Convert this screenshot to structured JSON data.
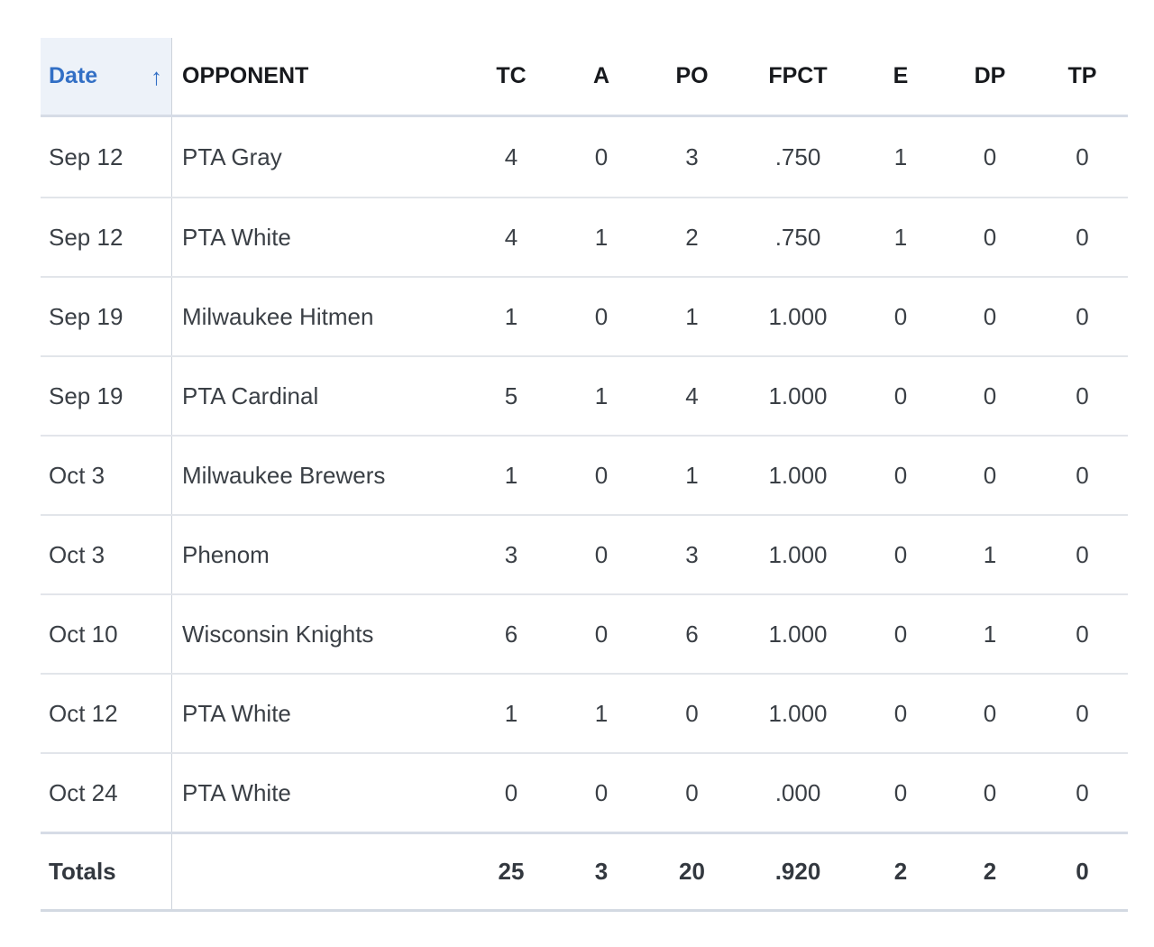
{
  "colors": {
    "sorted_column_text": "#326fc5",
    "sorted_column_bg": "#edf2f9",
    "header_text": "#17191d",
    "body_text": "#3a3f45"
  },
  "table": {
    "sort": {
      "column": "Date",
      "direction": "ascending",
      "arrow_glyph": "↑"
    },
    "columns": [
      {
        "key": "date",
        "label": "Date"
      },
      {
        "key": "opponent",
        "label": "OPPONENT"
      },
      {
        "key": "tc",
        "label": "TC"
      },
      {
        "key": "a",
        "label": "A"
      },
      {
        "key": "po",
        "label": "PO"
      },
      {
        "key": "fpct",
        "label": "FPCT"
      },
      {
        "key": "e",
        "label": "E"
      },
      {
        "key": "dp",
        "label": "DP"
      },
      {
        "key": "tp",
        "label": "TP"
      }
    ],
    "rows": [
      {
        "date": "Sep 12",
        "opponent": "PTA Gray",
        "tc": "4",
        "a": "0",
        "po": "3",
        "fpct": ".750",
        "e": "1",
        "dp": "0",
        "tp": "0"
      },
      {
        "date": "Sep 12",
        "opponent": "PTA White",
        "tc": "4",
        "a": "1",
        "po": "2",
        "fpct": ".750",
        "e": "1",
        "dp": "0",
        "tp": "0"
      },
      {
        "date": "Sep 19",
        "opponent": "Milwaukee Hitmen",
        "tc": "1",
        "a": "0",
        "po": "1",
        "fpct": "1.000",
        "e": "0",
        "dp": "0",
        "tp": "0"
      },
      {
        "date": "Sep 19",
        "opponent": "PTA Cardinal",
        "tc": "5",
        "a": "1",
        "po": "4",
        "fpct": "1.000",
        "e": "0",
        "dp": "0",
        "tp": "0"
      },
      {
        "date": "Oct 3",
        "opponent": "Milwaukee Brewers",
        "tc": "1",
        "a": "0",
        "po": "1",
        "fpct": "1.000",
        "e": "0",
        "dp": "0",
        "tp": "0"
      },
      {
        "date": "Oct 3",
        "opponent": "Phenom",
        "tc": "3",
        "a": "0",
        "po": "3",
        "fpct": "1.000",
        "e": "0",
        "dp": "1",
        "tp": "0"
      },
      {
        "date": "Oct 10",
        "opponent": "Wisconsin Knights",
        "tc": "6",
        "a": "0",
        "po": "6",
        "fpct": "1.000",
        "e": "0",
        "dp": "1",
        "tp": "0"
      },
      {
        "date": "Oct 12",
        "opponent": "PTA White",
        "tc": "1",
        "a": "1",
        "po": "0",
        "fpct": "1.000",
        "e": "0",
        "dp": "0",
        "tp": "0"
      },
      {
        "date": "Oct 24",
        "opponent": "PTA White",
        "tc": "0",
        "a": "0",
        "po": "0",
        "fpct": ".000",
        "e": "0",
        "dp": "0",
        "tp": "0"
      }
    ],
    "totals": {
      "label": "Totals",
      "tc": "25",
      "a": "3",
      "po": "20",
      "fpct": ".920",
      "e": "2",
      "dp": "2",
      "tp": "0"
    }
  }
}
